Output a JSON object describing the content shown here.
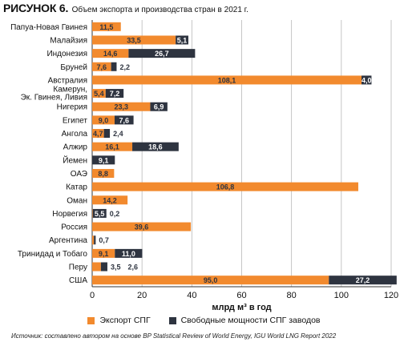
{
  "figure": {
    "label": "РИСУНОК 6.",
    "title": "Объем экспорта и производства стран в 2021 г.",
    "source": "Источник: составлено автором на основе BP Statistical Review of World Energy, IGU World LNG Report 2022"
  },
  "chart_data": {
    "type": "bar",
    "orientation": "horizontal",
    "stacked": true,
    "categories": [
      "Папуа-Новая Гвинея",
      "Малайзия",
      "Индонезия",
      "Бруней",
      "Австралия",
      "Камерун, Эк. Гвинея, Ливия",
      "Нигерия",
      "Египет",
      "Ангола",
      "Алжир",
      "Йемен",
      "ОАЭ",
      "Катар",
      "Оман",
      "Норвегия",
      "Россия",
      "Аргентина",
      "Тринидад и Тобаго",
      "Перу",
      "США"
    ],
    "series": [
      {
        "name": "Экспорт СПГ",
        "color": "#f28a2e",
        "values": [
          11.5,
          33.5,
          14.6,
          7.6,
          108.1,
          5.4,
          23.3,
          9.0,
          4.7,
          16.1,
          null,
          8.8,
          106.8,
          14.2,
          0.2,
          39.6,
          0.7,
          9.1,
          3.5,
          95.0
        ],
        "labels": [
          "11,5",
          "33,5",
          "14,6",
          "7,6",
          "108,1",
          "5,4",
          "23,3",
          "9,0",
          "4,7",
          "16,1",
          "",
          "8,8",
          "106,8",
          "14,2",
          "0,2",
          "39,6",
          "",
          "9,1",
          "3,5",
          "95,0"
        ]
      },
      {
        "name": "Свободные мощности СПГ заводов",
        "color": "#2e3440",
        "values": [
          null,
          5.1,
          26.7,
          2.2,
          4.0,
          7.2,
          6.9,
          7.6,
          2.4,
          18.6,
          9.1,
          null,
          null,
          null,
          5.5,
          null,
          0.7,
          11.0,
          2.6,
          27.2
        ],
        "labels": [
          "",
          "5,1",
          "26,7",
          "2,2",
          "4,0",
          "7,2",
          "6,9",
          "7,6",
          "2,4",
          "18,6",
          "9,1",
          "",
          "",
          "",
          "5,5",
          "",
          "0,7",
          "11,0",
          "2,6",
          "27,2"
        ]
      }
    ],
    "xlabel": "млрд м³ в год",
    "xlim": [
      0,
      120
    ],
    "xticks": [
      "0",
      "20",
      "40",
      "60",
      "80",
      "100",
      "120"
    ],
    "grid": true,
    "legend_position": "bottom"
  }
}
